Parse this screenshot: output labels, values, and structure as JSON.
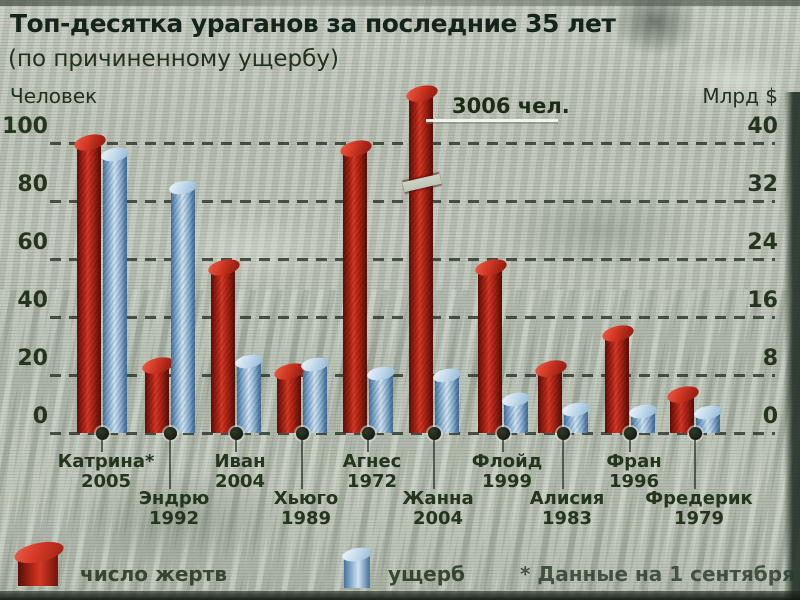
{
  "title": "Топ-десятка ураганов за последние 35 лет",
  "subtitle": "(по причиненному ущербу)",
  "annotation": {
    "text": "3006 чел."
  },
  "legend": {
    "victims_label": "число жертв",
    "damage_label": "ущерб",
    "footnote": "* Данные на 1 сентября"
  },
  "colors": {
    "victims": "#c52c1a",
    "damage": "#a7c6e0",
    "text": "#24351e",
    "grid": "#2c352a"
  },
  "chart_data": {
    "type": "bar",
    "title": "Топ-десятка ураганов за последние 35 лет (по причиненному ущербу)",
    "categories": [
      "Катрина*",
      "Эндрю",
      "Иван",
      "Хьюго",
      "Агнес",
      "Жанна",
      "Флойд",
      "Алисия",
      "Фран",
      "Фредерик"
    ],
    "years": [
      "2005",
      "1992",
      "2004",
      "1989",
      "1972",
      "2004",
      "1999",
      "1983",
      "1996",
      "1979"
    ],
    "series": [
      {
        "name": "число жертв",
        "axis": "left",
        "unit": "человек",
        "color": "#c52c1a",
        "values": [
          100,
          23,
          57,
          21,
          98,
          3006,
          57,
          22,
          34,
          13
        ]
      },
      {
        "name": "ущерб",
        "axis": "right",
        "unit": "млрд $",
        "color": "#a7c6e0",
        "values": [
          38.5,
          34,
          10,
          9.5,
          8.3,
          8,
          4.7,
          3.3,
          3,
          2.9
        ]
      }
    ],
    "left_axis": {
      "label": "Человек",
      "range": [
        0,
        100
      ],
      "ticks": [
        100,
        80,
        60,
        40,
        20,
        0
      ]
    },
    "right_axis": {
      "label": "Млрд $",
      "range": [
        0,
        40
      ],
      "ticks": [
        40,
        32,
        24,
        16,
        8,
        0
      ]
    },
    "annotations": [
      {
        "category": "Жанна",
        "series": "число жертв",
        "text": "3006 чел.",
        "note": "столбец с разрывом — значение вне шкалы"
      }
    ],
    "grid": "dashed horizontal gridlines",
    "legend_position": "bottom",
    "footnote": "* Данные на 1 сентября"
  }
}
